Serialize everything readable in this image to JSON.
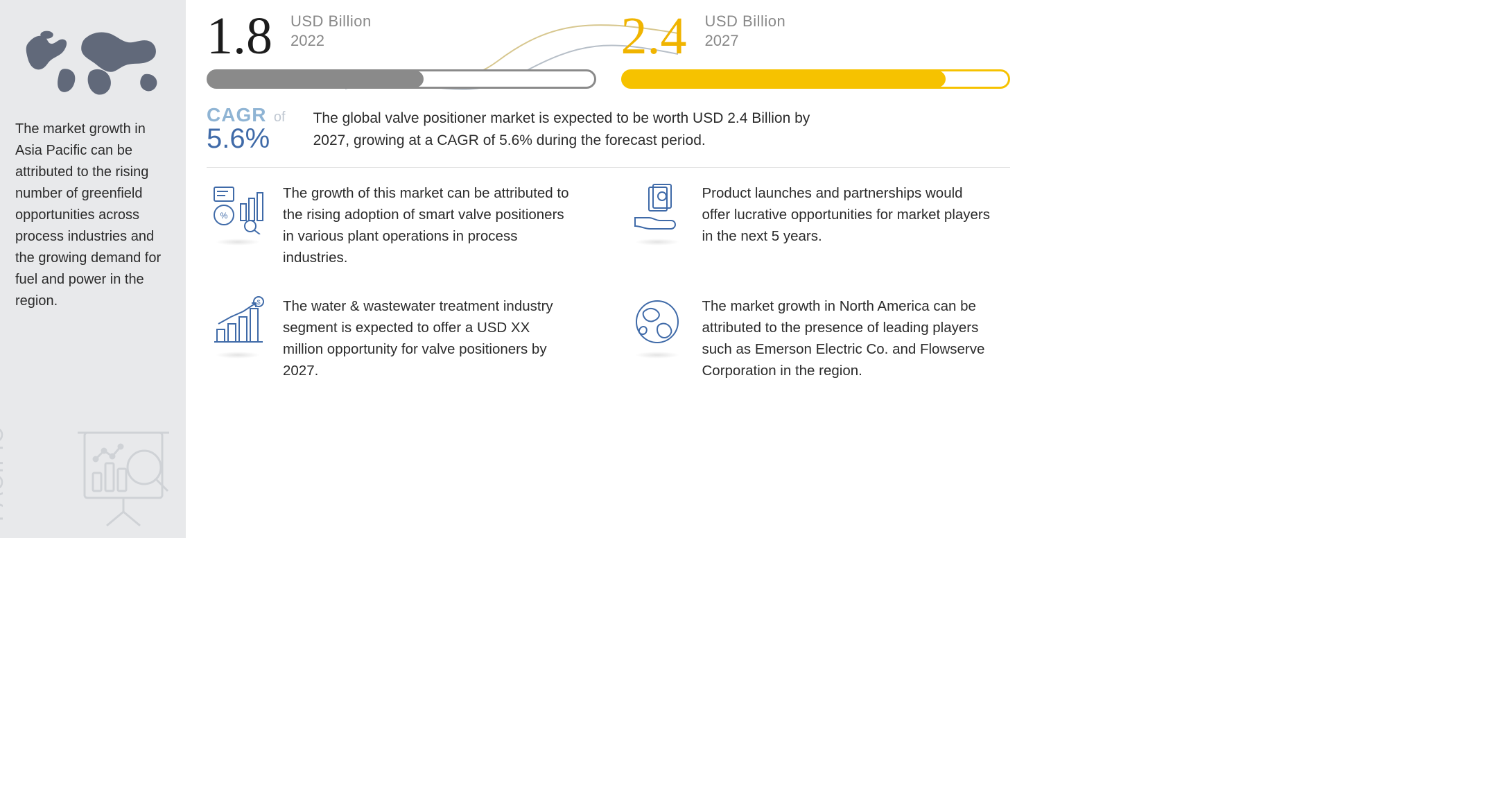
{
  "sidebar": {
    "region_vertical_label": "ASIA\nPACIFIC",
    "paragraph": "The market growth in Asia Pacific can be attributed to the rising number of greenfield opportunities across process industries and the growing demand for fuel and power in the region.",
    "map_fill": "#61697a",
    "bg": "#e8e9eb"
  },
  "metrics": {
    "left": {
      "value": "1.8",
      "unit": "USD Billion",
      "year": "2022",
      "value_color": "#1c1c1c",
      "bar_fill": "#8a8a8a",
      "bar_border": "#8a8a8a",
      "fill_pct": 56
    },
    "right": {
      "value": "2.4",
      "unit": "USD Billion",
      "year": "2027",
      "value_color": "#f0b400",
      "bar_fill": "#f6c200",
      "bar_border": "#f6c200",
      "fill_pct": 84
    }
  },
  "cagr": {
    "label": "CAGR",
    "of": "of",
    "value": "5.6%",
    "label_color": "#8fb4d4",
    "value_color": "#3f6aa8"
  },
  "summary": "The global valve positioner market is expected to be worth USD 2.4 Billion by 2027, growing at a CAGR of 5.6% during the forecast period.",
  "cards": [
    {
      "text": "The growth of this market can be attributed to the rising adoption of smart valve positioners in various plant operations in process industries."
    },
    {
      "text": "Product launches and partnerships would offer lucrative opportunities for market players in the next 5 years."
    },
    {
      "text": "The water & wastewater treatment industry segment is expected to offer a USD XX million opportunity for valve positioners by 2027."
    },
    {
      "text": "The market growth in North America can be attributed to the presence of leading players such as Emerson Electric Co. and Flowserve Corporation in the region."
    }
  ],
  "colors": {
    "icon_stroke": "#3f6aa8",
    "text": "#2b2b2b",
    "muted": "#888888",
    "wave1": "#d7c78f",
    "wave2": "#b7bfc8"
  }
}
